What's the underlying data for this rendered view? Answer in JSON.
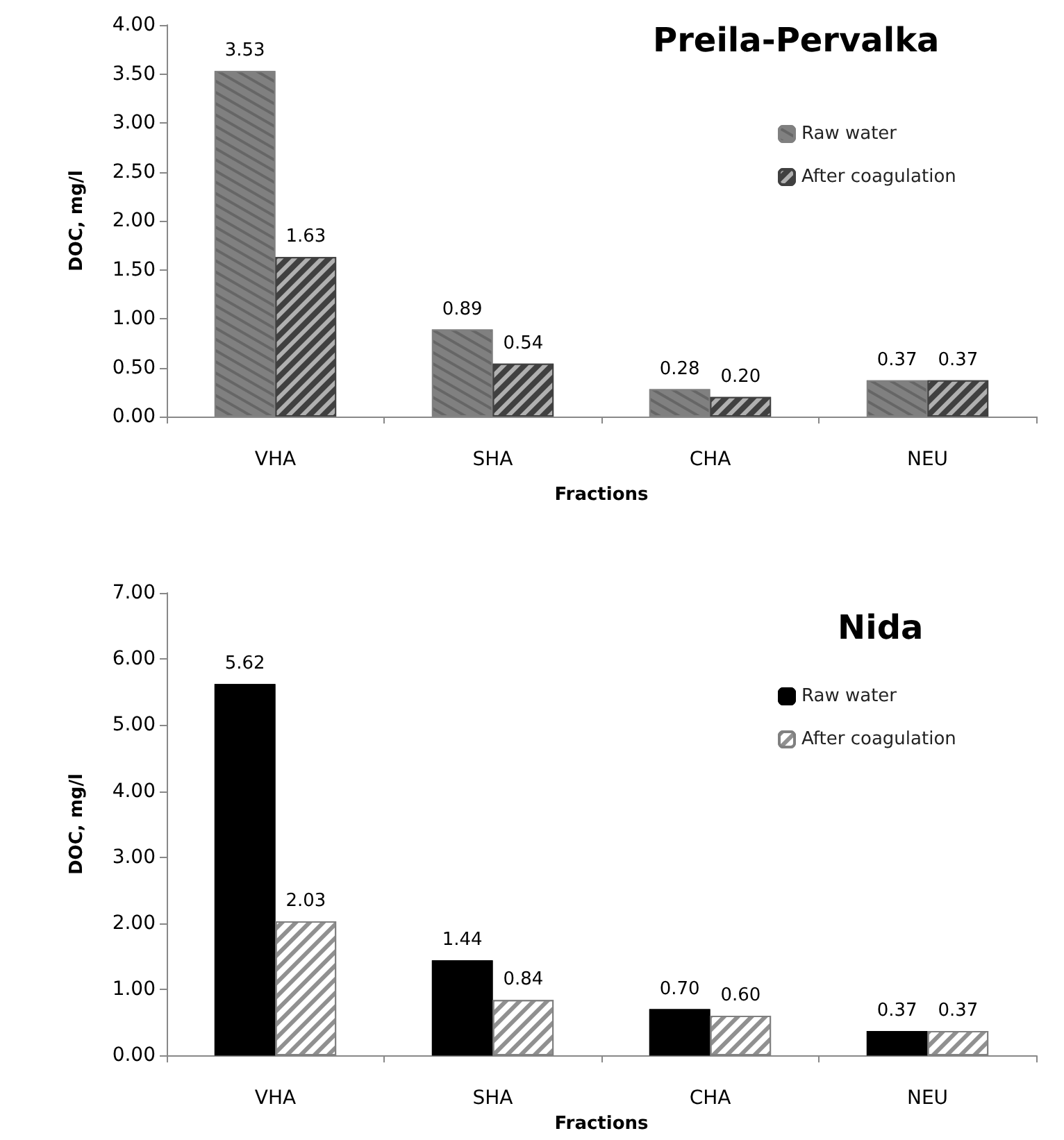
{
  "chart_data": [
    {
      "type": "bar",
      "title": "Preila-Pervalka",
      "xlabel": "Fractions",
      "ylabel": "DOC, mg/l",
      "categories": [
        "VHA",
        "SHA",
        "CHA",
        "NEU"
      ],
      "series": [
        {
          "name": "Raw water",
          "color": "#808080",
          "values": [
            3.53,
            0.89,
            0.28,
            0.37
          ],
          "value_labels": [
            "3.53",
            "0.89",
            "0.28",
            "0.37"
          ]
        },
        {
          "name": "After coagulation",
          "color": "#404040",
          "values": [
            1.63,
            0.54,
            0.2,
            0.37
          ],
          "value_labels": [
            "1.63",
            "0.54",
            "0.20",
            "0.37"
          ]
        }
      ],
      "ylim": [
        0,
        4
      ],
      "yticks": [
        {
          "value": 0,
          "label": "0.00"
        },
        {
          "value": 0.5,
          "label": "0.50"
        },
        {
          "value": 1,
          "label": "1.00"
        },
        {
          "value": 1.5,
          "label": "1.50"
        },
        {
          "value": 2,
          "label": "2.00"
        },
        {
          "value": 2.5,
          "label": "2.50"
        },
        {
          "value": 3,
          "label": "3.00"
        },
        {
          "value": 3.5,
          "label": "3.50"
        },
        {
          "value": 4,
          "label": "4.00"
        }
      ],
      "grid": false,
      "legend": "top right"
    },
    {
      "type": "bar",
      "title": "Nida",
      "xlabel": "Fractions",
      "ylabel": "DOC, mg/l",
      "categories": [
        "VHA",
        "SHA",
        "CHA",
        "NEU"
      ],
      "series": [
        {
          "name": "Raw water",
          "color": "#000000",
          "values": [
            5.62,
            1.44,
            0.7,
            0.37
          ],
          "value_labels": [
            "5.62",
            "1.44",
            "0.70",
            "0.37"
          ]
        },
        {
          "name": "After coagulation",
          "color": "#ffffff",
          "values": [
            2.03,
            0.84,
            0.6,
            0.37
          ],
          "value_labels": [
            "2.03",
            "0.84",
            "0.60",
            "0.37"
          ]
        }
      ],
      "ylim": [
        0,
        7
      ],
      "yticks": [
        {
          "value": 0,
          "label": "0.00"
        },
        {
          "value": 1,
          "label": "1.00"
        },
        {
          "value": 2,
          "label": "2.00"
        },
        {
          "value": 3,
          "label": "3.00"
        },
        {
          "value": 4,
          "label": "4.00"
        },
        {
          "value": 5,
          "label": "5.00"
        },
        {
          "value": 6,
          "label": "6.00"
        },
        {
          "value": 7,
          "label": "7.00"
        }
      ],
      "grid": false,
      "legend": "top right"
    }
  ]
}
